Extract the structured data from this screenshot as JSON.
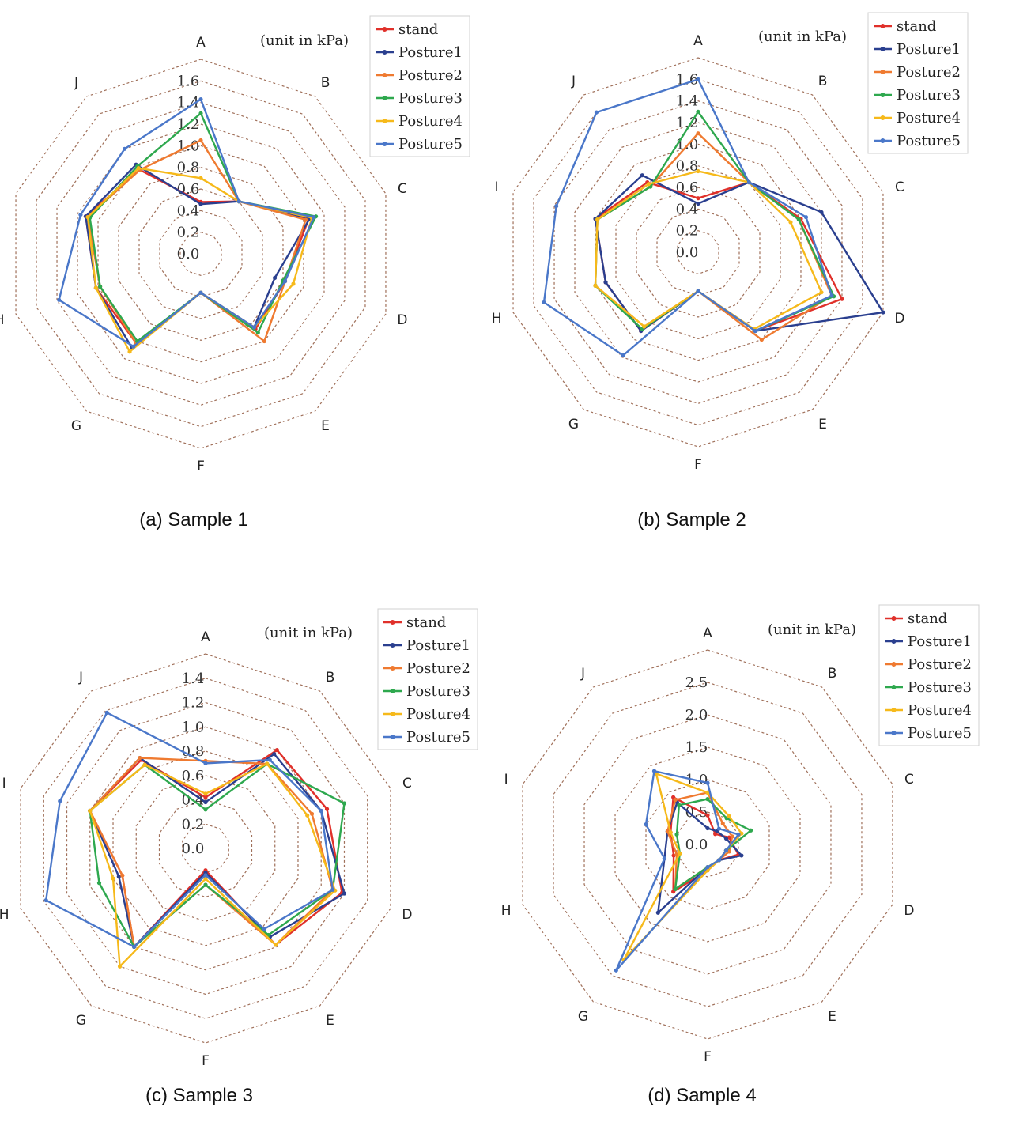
{
  "chart_data": [
    {
      "type": "radar",
      "caption": "(a) Sample 1",
      "unit_note": "(unit in kPa)",
      "categories": [
        "A",
        "B",
        "C",
        "D",
        "E",
        "F",
        "G",
        "H",
        "I",
        "J"
      ],
      "rmax": 1.6,
      "ticks": [
        "0.0",
        "0.2",
        "0.4",
        "0.6",
        "0.8",
        "1.0",
        "1.2",
        "1.4",
        "1.6"
      ],
      "tick_values": [
        0,
        0.2,
        0.4,
        0.6,
        0.8,
        1.0,
        1.2,
        1.4,
        1.6
      ],
      "legend_position": "top-right",
      "series": [
        {
          "name": "stand",
          "color": "#e0302a",
          "values": [
            0.48,
            0.6,
            1.05,
            0.82,
            0.86,
            0.36,
            1.02,
            1.02,
            1.12,
            0.96
          ]
        },
        {
          "name": "Posture1",
          "color": "#2a3f8f",
          "values": [
            0.46,
            0.6,
            1.06,
            0.72,
            0.84,
            0.36,
            1.08,
            1.02,
            1.12,
            1.02
          ]
        },
        {
          "name": "Posture2",
          "color": "#ef7a30",
          "values": [
            1.05,
            0.6,
            1.02,
            0.82,
            1.0,
            0.36,
            1.02,
            0.98,
            1.1,
            0.96
          ]
        },
        {
          "name": "Posture3",
          "color": "#2ea84e",
          "values": [
            1.3,
            0.6,
            1.12,
            0.8,
            0.9,
            0.36,
            1.0,
            0.98,
            1.08,
            1.0
          ]
        },
        {
          "name": "Posture4",
          "color": "#f6b91a",
          "values": [
            0.7,
            0.6,
            1.08,
            0.9,
            0.84,
            0.36,
            1.12,
            1.02,
            1.1,
            0.98
          ]
        },
        {
          "name": "Posture5",
          "color": "#4a77c9",
          "values": [
            1.43,
            0.6,
            1.1,
            0.82,
            0.84,
            0.36,
            1.06,
            1.38,
            1.17,
            1.2
          ]
        }
      ]
    },
    {
      "type": "radar",
      "caption": "(b) Sample 2",
      "unit_note": "(unit in kPa)",
      "categories": [
        "A",
        "B",
        "C",
        "D",
        "E",
        "F",
        "G",
        "H",
        "I",
        "J"
      ],
      "rmax": 1.6,
      "ticks": [
        "0.0",
        "0.2",
        "0.4",
        "0.6",
        "0.8",
        "1.0",
        "1.2",
        "1.4",
        "1.6"
      ],
      "tick_values": [
        0,
        0.2,
        0.4,
        0.6,
        0.8,
        1.0,
        1.2,
        1.4,
        1.6
      ],
      "legend_position": "top-right",
      "series": [
        {
          "name": "stand",
          "color": "#e0302a",
          "values": [
            0.5,
            0.8,
            1.0,
            1.4,
            0.9,
            0.36,
            0.9,
            0.9,
            1.0,
            0.8
          ]
        },
        {
          "name": "Posture1",
          "color": "#2a3f8f",
          "values": [
            0.45,
            0.8,
            1.2,
            1.8,
            0.9,
            0.36,
            0.9,
            0.9,
            1.0,
            0.88
          ]
        },
        {
          "name": "Posture2",
          "color": "#ef7a30",
          "values": [
            1.1,
            0.8,
            0.98,
            1.3,
            1.0,
            0.36,
            0.85,
            1.0,
            0.98,
            0.75
          ]
        },
        {
          "name": "Posture3",
          "color": "#2ea84e",
          "values": [
            1.3,
            0.8,
            0.98,
            1.32,
            0.9,
            0.36,
            0.88,
            1.0,
            0.98,
            0.75
          ]
        },
        {
          "name": "Posture4",
          "color": "#f6b91a",
          "values": [
            0.75,
            0.8,
            0.9,
            1.2,
            0.88,
            0.36,
            0.85,
            1.0,
            0.98,
            0.78
          ]
        },
        {
          "name": "Posture5",
          "color": "#4a77c9",
          "values": [
            1.6,
            0.8,
            1.05,
            1.3,
            0.9,
            0.36,
            1.18,
            1.5,
            1.38,
            1.6
          ]
        }
      ]
    },
    {
      "type": "radar",
      "caption": "(c) Sample 3",
      "unit_note": "(unit in kPa)",
      "categories": [
        "A",
        "B",
        "C",
        "D",
        "E",
        "F",
        "G",
        "H",
        "I",
        "J"
      ],
      "rmax": 1.4,
      "ticks": [
        "0.0",
        "0.2",
        "0.4",
        "0.6",
        "0.8",
        "1.0",
        "1.2",
        "1.4"
      ],
      "tick_values": [
        0,
        0.2,
        0.4,
        0.6,
        0.8,
        1.0,
        1.2,
        1.4
      ],
      "legend_position": "top-right",
      "series": [
        {
          "name": "stand",
          "color": "#e0302a",
          "values": [
            0.42,
            1.0,
            1.05,
            1.18,
            0.98,
            0.18,
            1.0,
            0.72,
            1.0,
            0.9
          ]
        },
        {
          "name": "Posture1",
          "color": "#2a3f8f",
          "values": [
            0.38,
            0.96,
            1.0,
            1.2,
            0.9,
            0.2,
            1.0,
            0.75,
            1.0,
            0.92
          ]
        },
        {
          "name": "Posture2",
          "color": "#ef7a30",
          "values": [
            0.72,
            0.86,
            0.92,
            1.1,
            0.98,
            0.3,
            1.0,
            0.72,
            1.0,
            0.92
          ]
        },
        {
          "name": "Posture3",
          "color": "#2ea84e",
          "values": [
            0.32,
            0.86,
            1.2,
            1.1,
            0.88,
            0.3,
            1.0,
            0.92,
            1.0,
            0.85
          ]
        },
        {
          "name": "Posture4",
          "color": "#f6b91a",
          "values": [
            0.45,
            0.86,
            0.88,
            1.12,
            0.98,
            0.25,
            1.2,
            0.8,
            1.0,
            0.85
          ]
        },
        {
          "name": "Posture5",
          "color": "#4a77c9",
          "values": [
            0.7,
            0.9,
            1.0,
            1.1,
            0.82,
            0.22,
            1.0,
            1.38,
            1.26,
            1.38
          ]
        }
      ]
    },
    {
      "type": "radar",
      "caption": "(d) Sample 4",
      "unit_note": "(unit in kPa)",
      "categories": [
        "A",
        "B",
        "C",
        "D",
        "E",
        "F",
        "G",
        "H",
        "I",
        "J"
      ],
      "rmax": 2.5,
      "ticks": [
        "0.0",
        "0.5",
        "1.0",
        "1.5",
        "2.0",
        "2.5"
      ],
      "tick_values": [
        0,
        0.5,
        1.0,
        1.5,
        2.0,
        2.5
      ],
      "legend_position": "top-right",
      "series": [
        {
          "name": "stand",
          "color": "#e0302a",
          "values": [
            0.45,
            0.2,
            0.35,
            0.5,
            0.3,
            0.4,
            0.9,
            0.55,
            0.6,
            0.9
          ]
        },
        {
          "name": "Posture1",
          "color": "#2a3f8f",
          "values": [
            0.25,
            0.25,
            0.3,
            0.55,
            0.3,
            0.35,
            1.3,
            0.7,
            0.65,
            0.8
          ]
        },
        {
          "name": "Posture2",
          "color": "#ef7a30",
          "values": [
            0.8,
            0.4,
            0.4,
            0.35,
            0.3,
            0.35,
            0.85,
            0.5,
            0.65,
            0.85
          ]
        },
        {
          "name": "Posture3",
          "color": "#2ea84e",
          "values": [
            0.7,
            0.5,
            0.7,
            0.3,
            0.3,
            0.35,
            0.85,
            0.45,
            0.5,
            0.75
          ]
        },
        {
          "name": "Posture4",
          "color": "#f6b91a",
          "values": [
            0.8,
            0.55,
            0.55,
            0.3,
            0.3,
            0.4,
            2.2,
            0.45,
            0.6,
            1.35
          ]
        },
        {
          "name": "Posture5",
          "color": "#4a77c9",
          "values": [
            0.95,
            0.3,
            0.5,
            0.3,
            0.3,
            0.35,
            2.4,
            0.7,
            1.0,
            1.4
          ]
        }
      ]
    }
  ]
}
